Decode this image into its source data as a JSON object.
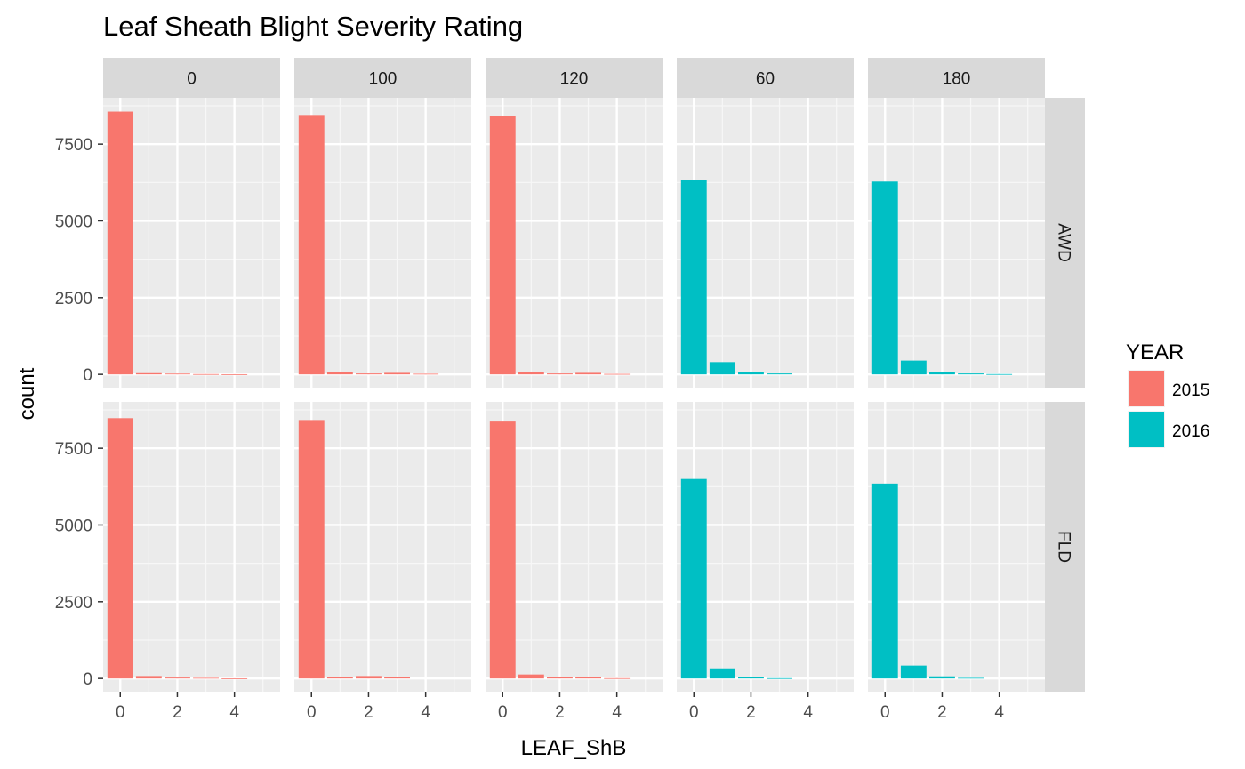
{
  "chart_data": {
    "type": "bar",
    "title": "Leaf Sheath Blight Severity Rating",
    "xlabel": "LEAF_ShB",
    "ylabel": "count",
    "x_ticks": [
      0,
      2,
      4
    ],
    "y_ticks": [
      0,
      2500,
      5000,
      7500
    ],
    "xlim": [
      -0.6,
      5.6
    ],
    "ylim": [
      -430,
      9010
    ],
    "grid": true,
    "legend": {
      "title": "YEAR",
      "placement": "right",
      "entries": [
        {
          "label": "2015",
          "color": "#F8766D"
        },
        {
          "label": "2016",
          "color": "#00BFC4"
        }
      ]
    },
    "column_facets": [
      "0",
      "100",
      "120",
      "60",
      "180"
    ],
    "row_facets": [
      "AWD",
      "FLD"
    ],
    "categories": [
      0,
      1,
      2,
      3,
      4,
      5
    ],
    "panels": [
      {
        "row": "AWD",
        "col": "0",
        "year": "2015",
        "values": [
          8560,
          40,
          25,
          10,
          5,
          0
        ]
      },
      {
        "row": "AWD",
        "col": "100",
        "year": "2015",
        "values": [
          8450,
          80,
          30,
          50,
          20,
          0
        ]
      },
      {
        "row": "AWD",
        "col": "120",
        "year": "2015",
        "values": [
          8420,
          80,
          30,
          50,
          15,
          0
        ]
      },
      {
        "row": "AWD",
        "col": "60",
        "year": "2016",
        "values": [
          6330,
          400,
          80,
          30,
          0,
          0
        ]
      },
      {
        "row": "AWD",
        "col": "180",
        "year": "2016",
        "values": [
          6280,
          450,
          80,
          30,
          10,
          0
        ]
      },
      {
        "row": "FLD",
        "col": "0",
        "year": "2015",
        "values": [
          8480,
          80,
          30,
          20,
          5,
          0
        ]
      },
      {
        "row": "FLD",
        "col": "100",
        "year": "2015",
        "values": [
          8420,
          50,
          80,
          50,
          0,
          0
        ]
      },
      {
        "row": "FLD",
        "col": "120",
        "year": "2015",
        "values": [
          8370,
          130,
          40,
          40,
          10,
          0
        ]
      },
      {
        "row": "FLD",
        "col": "60",
        "year": "2016",
        "values": [
          6500,
          330,
          50,
          10,
          0,
          0
        ]
      },
      {
        "row": "FLD",
        "col": "180",
        "year": "2016",
        "values": [
          6350,
          420,
          70,
          20,
          0,
          0
        ]
      }
    ]
  }
}
